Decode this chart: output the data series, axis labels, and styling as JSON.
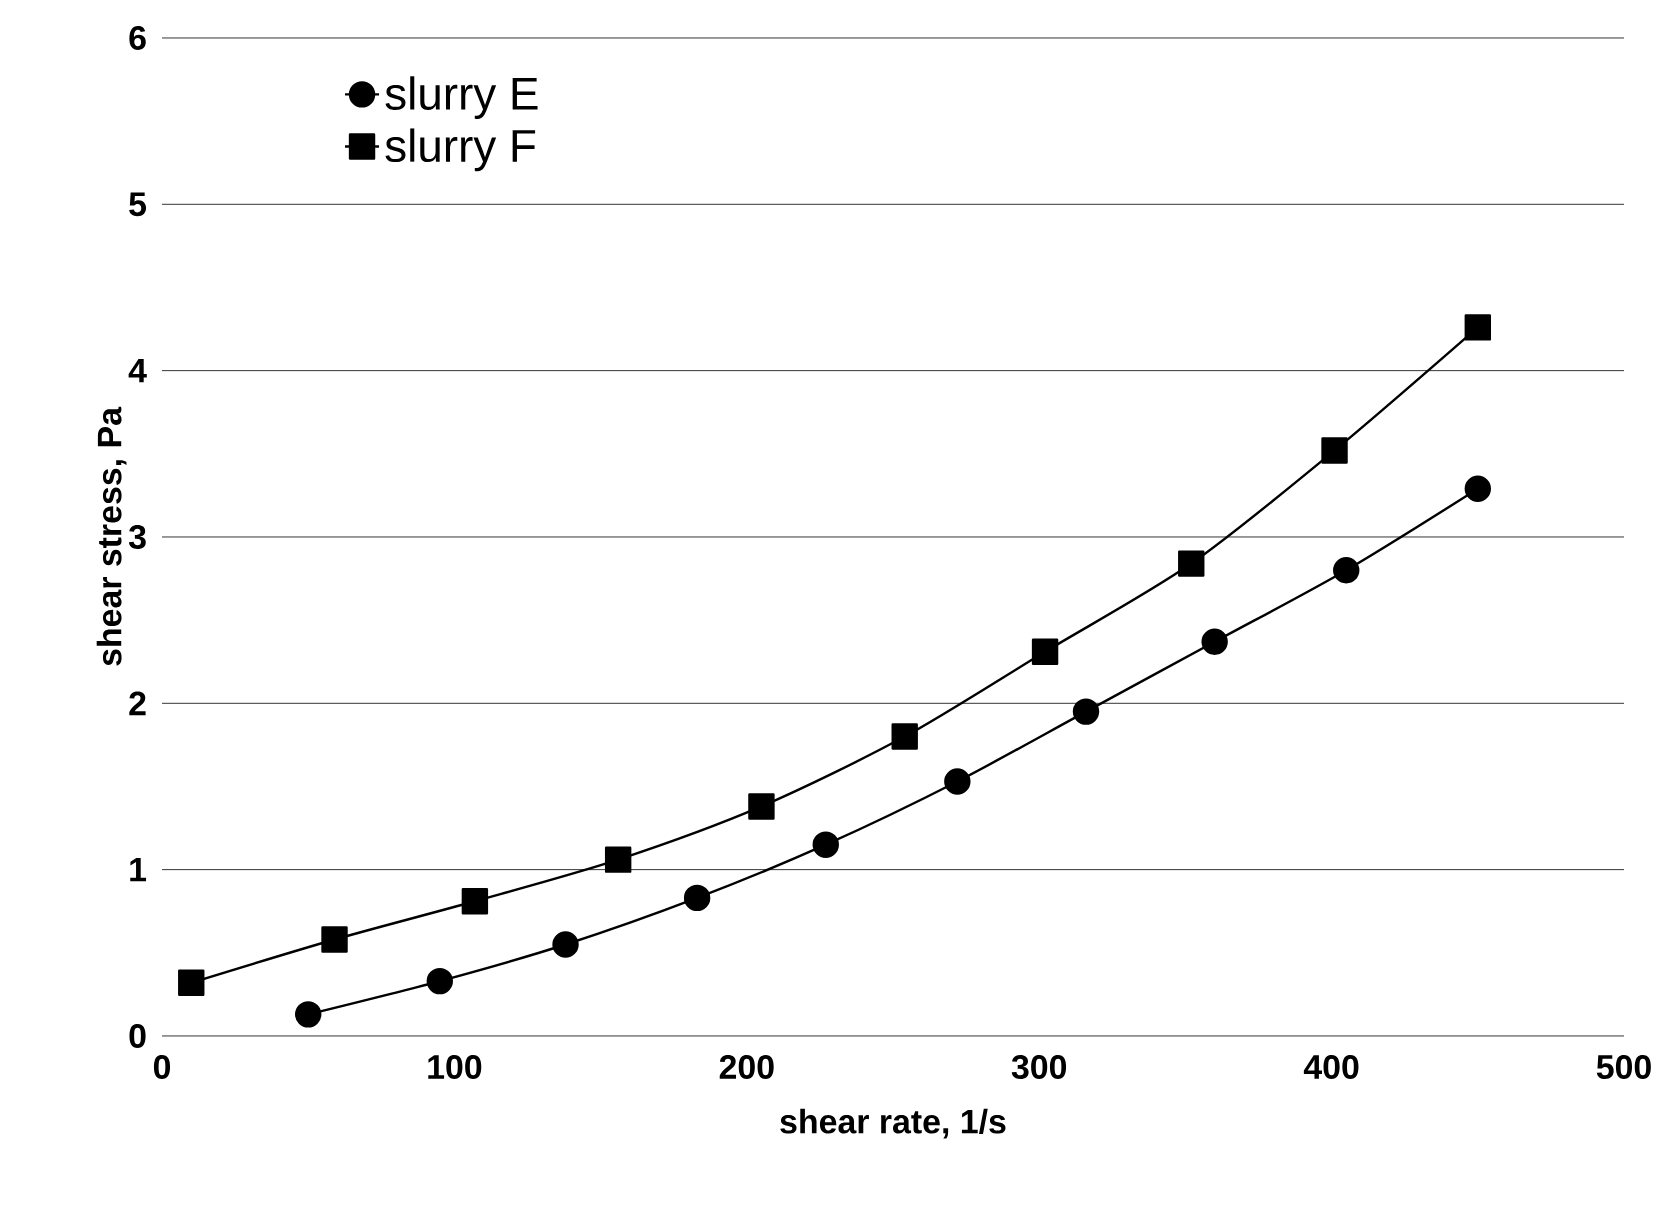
{
  "chart_data": {
    "type": "line",
    "xlabel": "shear rate, 1/s",
    "ylabel": "shear stress, Pa",
    "xlim": [
      0,
      500
    ],
    "xticks": [
      0,
      100,
      200,
      300,
      400,
      500
    ],
    "ylim": [
      0,
      6
    ],
    "yticks": [
      0,
      1,
      2,
      3,
      4,
      5,
      6
    ],
    "grid": "y",
    "legend": "top left",
    "line_style": "solid",
    "series": [
      {
        "name": "slurry E",
        "color": "#000000",
        "marker": "circle",
        "x": [
          50,
          95,
          138,
          183,
          227,
          272,
          316,
          360,
          405,
          450
        ],
        "values": [
          0.13,
          0.33,
          0.55,
          0.83,
          1.15,
          1.53,
          1.95,
          2.37,
          2.8,
          3.29
        ]
      },
      {
        "name": "slurry F",
        "color": "#000000",
        "marker": "square",
        "x": [
          10,
          59,
          107,
          156,
          205,
          254,
          302,
          352,
          401,
          450
        ],
        "values": [
          0.32,
          0.58,
          0.81,
          1.06,
          1.38,
          1.8,
          2.31,
          2.84,
          3.52,
          4.26
        ]
      }
    ]
  }
}
